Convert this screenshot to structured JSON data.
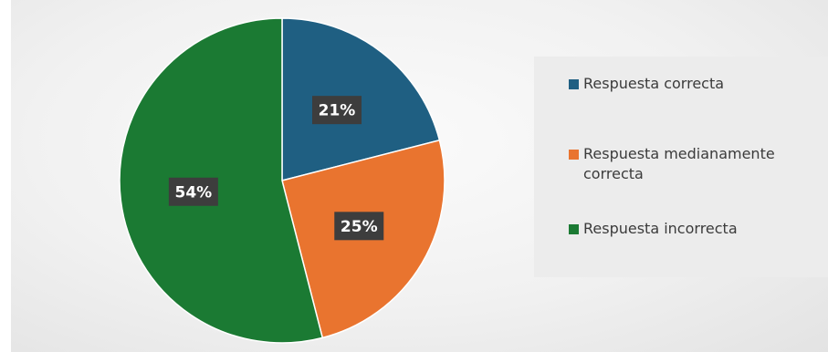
{
  "chart_data": {
    "type": "pie",
    "slices": [
      {
        "label": "Respuesta correcta",
        "value": 21,
        "display": "21%",
        "color": "#1f5f82"
      },
      {
        "label": "Respuesta medianamente correcta",
        "value": 25,
        "display": "25%",
        "color": "#e9742f"
      },
      {
        "label": "Respuesta incorrecta",
        "value": 54,
        "display": "54%",
        "color": "#1b7a33"
      }
    ],
    "legend": "right",
    "data_label_style": {
      "background": "#3d3d3d",
      "color": "#ffffff"
    }
  }
}
